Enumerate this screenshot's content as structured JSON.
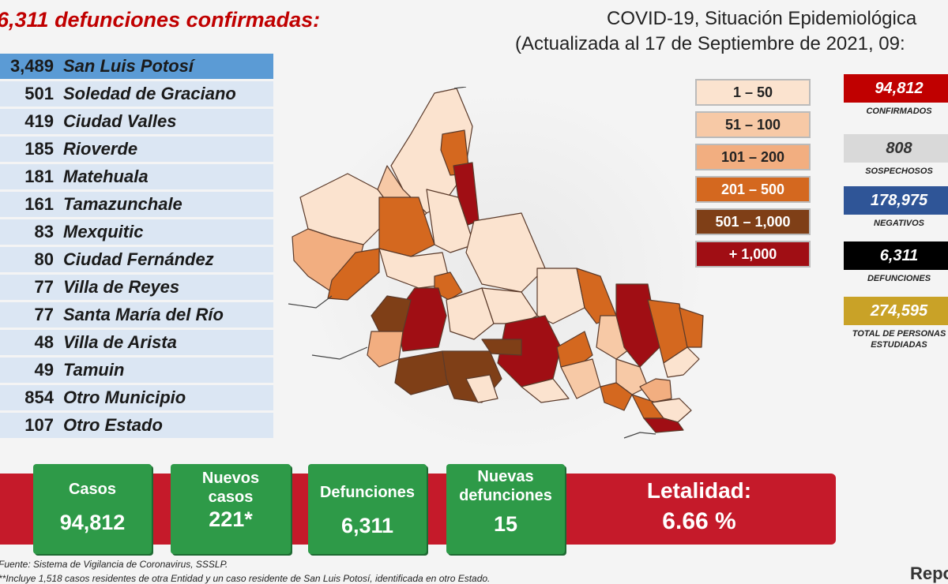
{
  "header": {
    "deaths_title": "6,311 defunciones confirmadas:",
    "report_title": "COVID-19, Situación Epidemiológica",
    "report_subtitle": "(Actualizada al 17 de Septiembre de 2021, 09:"
  },
  "municipalities": [
    {
      "count": "3,489",
      "name": "San Luis Potosí"
    },
    {
      "count": "501",
      "name": "Soledad de Graciano"
    },
    {
      "count": "419",
      "name": "Ciudad Valles"
    },
    {
      "count": "185",
      "name": "Rioverde"
    },
    {
      "count": "181",
      "name": "Matehuala"
    },
    {
      "count": "161",
      "name": "Tamazunchale"
    },
    {
      "count": "83",
      "name": "Mexquitic"
    },
    {
      "count": "80",
      "name": "Ciudad Fernández"
    },
    {
      "count": "77",
      "name": "Villa de Reyes"
    },
    {
      "count": "77",
      "name": "Santa María del Río"
    },
    {
      "count": "48",
      "name": "Villa de Arista"
    },
    {
      "count": "49",
      "name": "Tamuin"
    },
    {
      "count": "854",
      "name": "Otro Municipio"
    },
    {
      "count": "107",
      "name": "Otro Estado"
    }
  ],
  "legend": [
    {
      "label": "1 – 50",
      "color": "#fbe3cf",
      "text": "#222"
    },
    {
      "label": "51 – 100",
      "color": "#f7c9a6",
      "text": "#222"
    },
    {
      "label": "101 – 200",
      "color": "#f2ae80",
      "text": "#222"
    },
    {
      "label": "201 – 500",
      "color": "#d4681f",
      "text": "#fff"
    },
    {
      "label": "501 – 1,000",
      "color": "#7f3f17",
      "text": "#fff"
    },
    {
      "label": "+ 1,000",
      "color": "#a00e14",
      "text": "#fff"
    }
  ],
  "stats": [
    {
      "value": "94,812",
      "label": "CONFIRMADOS",
      "color": "#c00000",
      "text": "#fff"
    },
    {
      "value": "808",
      "label": "SOSPECHOSOS",
      "color": "#d9d9d9",
      "text": "#333"
    },
    {
      "value": "178,975",
      "label": "NEGATIVOS",
      "color": "#2f5597",
      "text": "#fff"
    },
    {
      "value": "6,311",
      "label": "DEFUNCIONES",
      "color": "#000000",
      "text": "#fff"
    },
    {
      "value": "274,595",
      "label": "TOTAL DE PERSONAS ESTUDIADAS",
      "color": "#c9a227",
      "text": "#fff"
    }
  ],
  "summary": {
    "cases_label": "Casos",
    "cases_value": "94,812",
    "new_cases_label": "Nuevos casos",
    "new_cases_value": "221*",
    "deaths_label": "Defunciones",
    "deaths_value": "6,311",
    "new_deaths_label": "Nuevas defunciones",
    "new_deaths_value": "15",
    "lethality_label": "Letalidad:",
    "lethality_value": "6.66 %"
  },
  "footer": {
    "source": "Fuente: Sistema de Vigilancia de Coronavirus, SSSLP.",
    "note": "**Incluye 1,518 casos residentes de otra Entidad y un caso residente de San Luis Potosí, identificada en otro Estado.",
    "corner": "Repo"
  },
  "colors": {
    "band": "#c51a2a",
    "card": "#2e9a48",
    "title_red": "#c00000"
  }
}
